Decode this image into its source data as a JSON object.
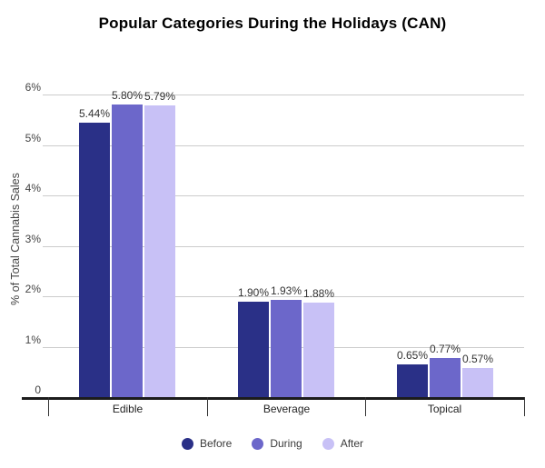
{
  "title": "Popular Categories During the Holidays (CAN)",
  "colors": {
    "background": "#ffffff",
    "grid": "#cccccc",
    "baseline": "#1c1c1c",
    "tick": "#333333",
    "series": [
      "#2a3087",
      "#6c67ca",
      "#c8c1f6"
    ]
  },
  "chart_data": {
    "type": "bar",
    "title": "Popular Categories During the Holidays (CAN)",
    "xlabel": "",
    "ylabel": "% of Total Cannabis Sales",
    "categories": [
      "Edible",
      "Beverage",
      "Topical"
    ],
    "series": [
      {
        "name": "Before",
        "color": "#2a3087",
        "values": [
          5.44,
          1.9,
          0.65
        ],
        "value_labels": [
          "5.44%",
          "1.90%",
          "0.65%"
        ]
      },
      {
        "name": "During",
        "color": "#6c67ca",
        "values": [
          5.8,
          1.93,
          0.77
        ],
        "value_labels": [
          "5.80%",
          "1.93%",
          "0.77%"
        ]
      },
      {
        "name": "After",
        "color": "#c8c1f6",
        "values": [
          5.79,
          1.88,
          0.57
        ],
        "value_labels": [
          "5.79%",
          "1.88%",
          "0.57%"
        ]
      }
    ],
    "y_axis": {
      "min": 0,
      "max": 6,
      "tick_labels": [
        "0",
        "1%",
        "2%",
        "3%",
        "4%",
        "5%",
        "6%"
      ]
    },
    "grid": true,
    "legend_position": "bottom",
    "legend_entries": [
      "Before",
      "During",
      "After"
    ]
  }
}
